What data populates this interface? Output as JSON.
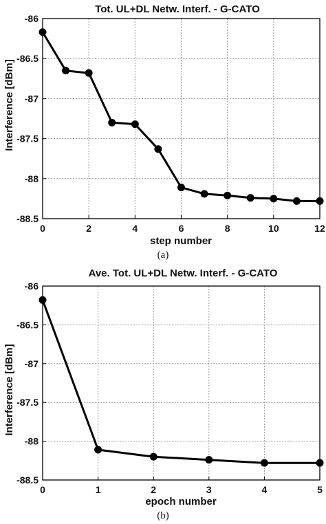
{
  "chart_data": [
    {
      "type": "line",
      "title": "Tot. UL+DL Netw. Interf. - G-CATO",
      "xlabel": "step number",
      "ylabel": "Interference [dBm]",
      "caption": "(a)",
      "xlim": [
        0,
        12
      ],
      "ylim": [
        -88.5,
        -86
      ],
      "xticks": [
        0,
        2,
        4,
        6,
        8,
        10,
        12
      ],
      "yticks": [
        -86,
        -86.5,
        -87,
        -87.5,
        -88,
        -88.5
      ],
      "grid": true,
      "series": [
        {
          "x": [
            0,
            1,
            2,
            3,
            4,
            5,
            6,
            7,
            8,
            9,
            10,
            11,
            12
          ],
          "y": [
            -86.17,
            -86.65,
            -86.68,
            -87.3,
            -87.32,
            -87.63,
            -88.11,
            -88.19,
            -88.21,
            -88.24,
            -88.25,
            -88.28,
            -88.28
          ]
        }
      ]
    },
    {
      "type": "line",
      "title": "Ave. Tot. UL+DL Netw. Interf. - G-CATO",
      "xlabel": "epoch number",
      "ylabel": "Interference [dBm]",
      "caption": "(b)",
      "xlim": [
        0,
        5
      ],
      "ylim": [
        -88.5,
        -86
      ],
      "xticks": [
        0,
        1,
        2,
        3,
        4,
        5
      ],
      "yticks": [
        -86,
        -86.5,
        -87,
        -87.5,
        -88,
        -88.5
      ],
      "grid": true,
      "series": [
        {
          "x": [
            0,
            1,
            2,
            3,
            4,
            5
          ],
          "y": [
            -86.18,
            -88.11,
            -88.2,
            -88.24,
            -88.28,
            -88.28
          ]
        }
      ]
    }
  ]
}
